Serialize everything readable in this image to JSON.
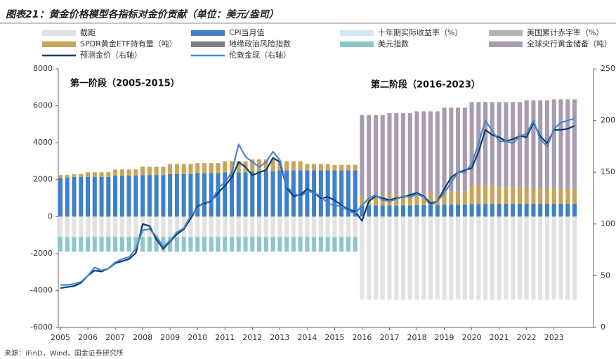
{
  "chart_data": {
    "type": "bar",
    "title": "图表21：黄金价格模型各指标对金价贡献（单位：美元/盎司）",
    "source": "来源：iFinD，Wind，国金证券研究所",
    "annotations": [
      "第一阶段（2005-2015）",
      "第二阶段（2016-2023）"
    ],
    "categories": [
      "2005",
      null,
      null,
      null,
      "2006",
      null,
      null,
      null,
      "2007",
      null,
      null,
      null,
      "2008",
      null,
      null,
      null,
      "2009",
      null,
      null,
      null,
      "2010",
      null,
      null,
      null,
      "2011",
      null,
      null,
      null,
      "2012",
      null,
      null,
      null,
      "2013",
      null,
      null,
      null,
      "2014",
      null,
      null,
      null,
      "2015",
      null,
      null,
      null,
      "2016",
      null,
      null,
      null,
      "2017",
      null,
      null,
      null,
      "2018",
      null,
      null,
      null,
      "2019",
      null,
      null,
      null,
      "2020",
      null,
      null,
      null,
      "2021",
      null,
      null,
      null,
      "2022",
      null,
      null,
      null,
      "2023",
      null,
      null,
      null
    ],
    "ylim": [
      -6000,
      8000
    ],
    "yticks": [
      -6000,
      -4000,
      -2000,
      0,
      2000,
      4000,
      6000,
      8000
    ],
    "y2lim": [
      0,
      250
    ],
    "y2ticks": [
      0,
      50,
      100,
      150,
      200,
      250
    ],
    "series": [
      {
        "name": "截距",
        "color": "#e2e2e2",
        "values": [
          -1100,
          -1100,
          -1100,
          -1100,
          -1100,
          -1100,
          -1100,
          -1100,
          -1100,
          -1100,
          -1100,
          -1100,
          -1100,
          -1100,
          -1100,
          -1100,
          -1100,
          -1100,
          -1100,
          -1100,
          -1100,
          -1100,
          -1100,
          -1100,
          -1100,
          -1100,
          -1100,
          -1100,
          -1100,
          -1100,
          -1100,
          -1100,
          -1100,
          -1100,
          -1100,
          -1100,
          -1100,
          -1100,
          -1100,
          -1100,
          -1100,
          -1100,
          -1100,
          -1100,
          -4500,
          -4500,
          -4500,
          -4500,
          -4500,
          -4500,
          -4500,
          -4500,
          -4500,
          -4500,
          -4500,
          -4500,
          -4500,
          -4500,
          -4500,
          -4500,
          -4500,
          -4500,
          -4500,
          -4500,
          -4500,
          -4500,
          -4500,
          -4500,
          -4500,
          -4500,
          -4500,
          -4500,
          -4500,
          -4500,
          -4500,
          -4500
        ]
      },
      {
        "name": "CPI当月值",
        "color": "#3f7fcc",
        "values": [
          2100,
          2100,
          2150,
          2150,
          2150,
          2150,
          2150,
          2150,
          2200,
          2200,
          2200,
          2200,
          2250,
          2250,
          2250,
          2250,
          2300,
          2300,
          2300,
          2300,
          2350,
          2350,
          2350,
          2350,
          2400,
          2400,
          2400,
          2400,
          2450,
          2450,
          2450,
          2450,
          2500,
          2500,
          2500,
          2500,
          2500,
          2500,
          2500,
          2500,
          2500,
          2500,
          2500,
          2500,
          600,
          600,
          600,
          600,
          600,
          600,
          600,
          600,
          620,
          620,
          620,
          620,
          650,
          650,
          650,
          650,
          680,
          680,
          680,
          680,
          700,
          700,
          700,
          700,
          700,
          700,
          700,
          700,
          700,
          700,
          700,
          700
        ]
      },
      {
        "name": "十年期实际收益率（%）",
        "color": "#d6e6f6",
        "values": [
          0,
          0,
          0,
          0,
          0,
          0,
          0,
          0,
          0,
          0,
          0,
          0,
          0,
          0,
          0,
          0,
          0,
          0,
          0,
          0,
          0,
          0,
          0,
          0,
          0,
          0,
          0,
          0,
          0,
          0,
          0,
          0,
          0,
          0,
          0,
          0,
          0,
          0,
          0,
          0,
          0,
          0,
          0,
          0,
          0,
          0,
          0,
          0,
          0,
          0,
          0,
          0,
          0,
          0,
          0,
          0,
          0,
          0,
          0,
          0,
          0,
          0,
          0,
          0,
          0,
          0,
          0,
          0,
          0,
          0,
          0,
          0,
          0,
          0,
          0,
          0
        ]
      },
      {
        "name": "美国累计赤字率（%）",
        "color": "#b3b3b3",
        "values": [
          0,
          0,
          0,
          0,
          0,
          0,
          0,
          0,
          0,
          0,
          0,
          0,
          0,
          0,
          0,
          0,
          0,
          0,
          0,
          0,
          0,
          0,
          0,
          0,
          0,
          0,
          0,
          0,
          0,
          0,
          0,
          0,
          0,
          0,
          0,
          0,
          0,
          0,
          0,
          0,
          0,
          0,
          0,
          0,
          0,
          0,
          0,
          0,
          0,
          0,
          0,
          0,
          0,
          0,
          0,
          0,
          0,
          0,
          0,
          0,
          0,
          0,
          0,
          0,
          0,
          0,
          0,
          0,
          0,
          0,
          0,
          0,
          0,
          0,
          0,
          0
        ]
      },
      {
        "name": "SPDR黄金ETF持有量（吨）",
        "color": "#c9a45a",
        "values": [
          150,
          150,
          150,
          150,
          250,
          250,
          250,
          250,
          350,
          350,
          350,
          350,
          450,
          450,
          450,
          450,
          550,
          550,
          550,
          550,
          550,
          550,
          550,
          550,
          600,
          600,
          600,
          600,
          650,
          650,
          650,
          650,
          500,
          500,
          500,
          500,
          350,
          350,
          350,
          350,
          300,
          300,
          300,
          300,
          500,
          500,
          500,
          500,
          600,
          600,
          600,
          600,
          600,
          600,
          600,
          600,
          700,
          700,
          700,
          700,
          1000,
          1000,
          1000,
          1000,
          900,
          900,
          900,
          900,
          850,
          850,
          850,
          850,
          800,
          800,
          800,
          800
        ]
      },
      {
        "name": "地缘政治风险指数",
        "color": "#7f7f7f",
        "values": [
          0,
          0,
          0,
          0,
          0,
          0,
          0,
          0,
          0,
          0,
          0,
          0,
          0,
          0,
          0,
          0,
          0,
          0,
          0,
          0,
          0,
          0,
          0,
          0,
          0,
          0,
          0,
          0,
          0,
          0,
          0,
          0,
          0,
          0,
          0,
          0,
          0,
          0,
          0,
          0,
          0,
          0,
          0,
          0,
          0,
          0,
          0,
          0,
          0,
          0,
          0,
          0,
          0,
          0,
          0,
          0,
          0,
          0,
          0,
          0,
          0,
          0,
          0,
          0,
          0,
          0,
          0,
          0,
          0,
          0,
          0,
          0,
          0,
          0,
          0,
          0
        ]
      },
      {
        "name": "美元指数",
        "color": "#8cc7c9",
        "values": [
          -800,
          -800,
          -800,
          -800,
          -800,
          -800,
          -800,
          -800,
          -800,
          -800,
          -800,
          -800,
          -800,
          -800,
          -800,
          -800,
          -800,
          -800,
          -800,
          -800,
          -800,
          -800,
          -800,
          -800,
          -800,
          -800,
          -800,
          -800,
          -800,
          -800,
          -800,
          -800,
          -800,
          -800,
          -800,
          -800,
          -800,
          -800,
          -800,
          -800,
          -800,
          -800,
          -800,
          -800,
          0,
          0,
          0,
          0,
          0,
          0,
          0,
          0,
          0,
          0,
          0,
          0,
          0,
          0,
          0,
          0,
          0,
          0,
          0,
          0,
          0,
          0,
          0,
          0,
          0,
          0,
          0,
          0,
          0,
          0,
          0,
          0
        ]
      },
      {
        "name": "全球央行黄金储备（吨）",
        "color": "#a99bb0",
        "values": [
          0,
          0,
          0,
          0,
          0,
          0,
          0,
          0,
          0,
          0,
          0,
          0,
          0,
          0,
          0,
          0,
          0,
          0,
          0,
          0,
          0,
          0,
          0,
          0,
          0,
          0,
          0,
          0,
          0,
          0,
          0,
          0,
          0,
          0,
          0,
          0,
          0,
          0,
          0,
          0,
          0,
          0,
          0,
          0,
          4400,
          4400,
          4400,
          4400,
          4400,
          4400,
          4400,
          4400,
          4480,
          4480,
          4480,
          4480,
          4550,
          4550,
          4550,
          4550,
          4520,
          4520,
          4520,
          4520,
          4600,
          4600,
          4600,
          4600,
          4750,
          4750,
          4750,
          4750,
          4850,
          4850,
          4850,
          4850
        ]
      },
      {
        "name": "预测金价（右轴）",
        "type": "line",
        "axis": "y2",
        "color": "#0d3d6e",
        "values": [
          38,
          39,
          40,
          43,
          50,
          55,
          54,
          57,
          62,
          64,
          66,
          72,
          100,
          98,
          85,
          76,
          83,
          90,
          95,
          105,
          117,
          120,
          122,
          130,
          137,
          145,
          160,
          155,
          147,
          150,
          152,
          164,
          160,
          135,
          127,
          128,
          134,
          130,
          125,
          126,
          123,
          118,
          114,
          112,
          103,
          122,
          127,
          125,
          123,
          125,
          126,
          128,
          130,
          127,
          120,
          122,
          134,
          145,
          150,
          152,
          154,
          170,
          191,
          186,
          184,
          180,
          182,
          185,
          184,
          198,
          185,
          178,
          191,
          191,
          192,
          195
        ]
      },
      {
        "name": "伦敦金现（右轴）",
        "type": "line",
        "axis": "y2",
        "color": "#4a87cc",
        "values": [
          41,
          41,
          42,
          44,
          50,
          58,
          55,
          57,
          63,
          66,
          68,
          76,
          94,
          95,
          88,
          78,
          84,
          92,
          96,
          108,
          115,
          122,
          120,
          135,
          140,
          150,
          177,
          165,
          160,
          155,
          160,
          170,
          162,
          136,
          130,
          126,
          132,
          130,
          127,
          120,
          118,
          117,
          113,
          110,
          118,
          125,
          128,
          123,
          122,
          124,
          127,
          126,
          129,
          126,
          118,
          122,
          130,
          140,
          150,
          150,
          158,
          178,
          200,
          190,
          180,
          180,
          178,
          185,
          187,
          200,
          182,
          175,
          192,
          198,
          200,
          202
        ]
      }
    ]
  }
}
